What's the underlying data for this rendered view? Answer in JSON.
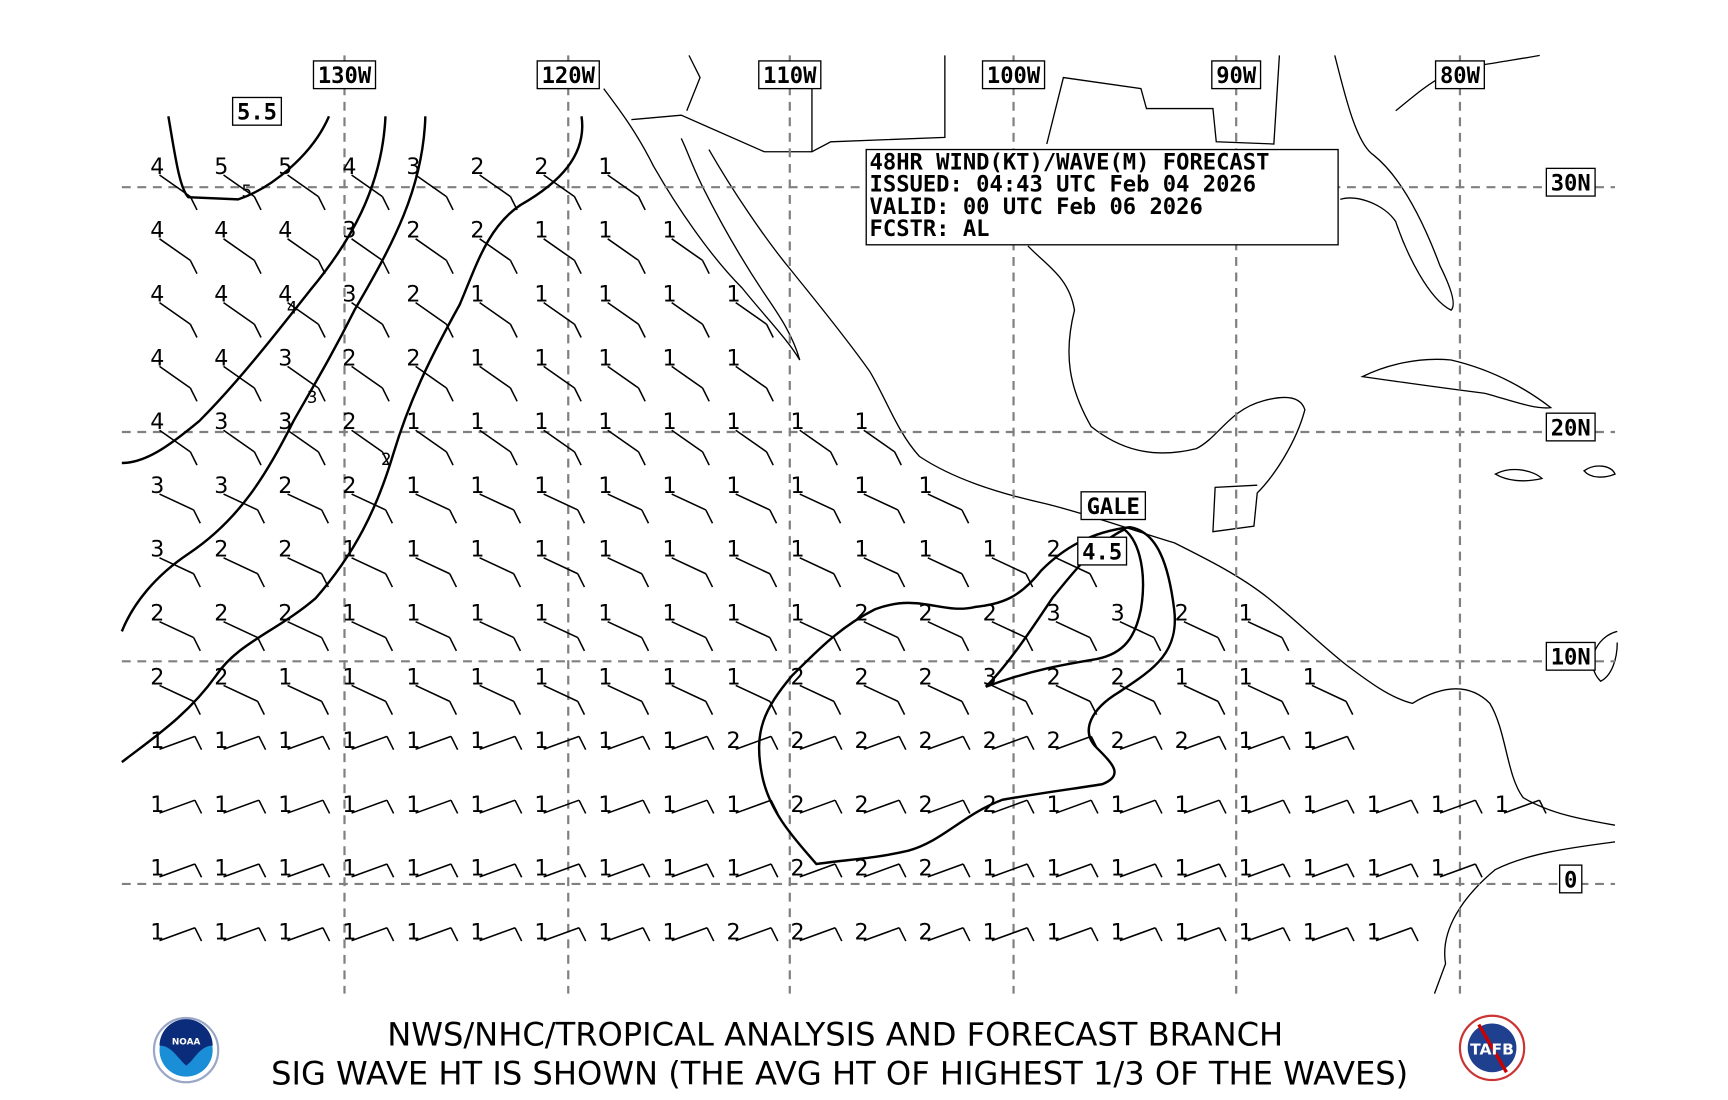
{
  "header": {
    "line1": "48HR WIND(KT)/WAVE(M) FORECAST",
    "line2": "ISSUED: 04:43 UTC Feb 04 2026",
    "line3": "VALID: 00 UTC Feb 06 2026",
    "line4": "FCSTR: AL"
  },
  "longitude_labels": [
    "130W",
    "120W",
    "110W",
    "100W",
    "90W",
    "80W"
  ],
  "latitude_labels": [
    "30N",
    "20N",
    "10N",
    "0"
  ],
  "contour_labels": {
    "max_box": "5.5",
    "c5": "5",
    "c4": "4",
    "c3": "3",
    "c2": "2",
    "gale": "GALE",
    "gale_wave": "4.5"
  },
  "wave_heights_m": [
    [
      4,
      5,
      5,
      4,
      3,
      2,
      2,
      1
    ],
    [
      4,
      4,
      4,
      3,
      2,
      2,
      1,
      1,
      1
    ],
    [
      4,
      4,
      4,
      3,
      2,
      1,
      1,
      1,
      1,
      1
    ],
    [
      4,
      4,
      3,
      2,
      2,
      1,
      1,
      1,
      1,
      1
    ],
    [
      4,
      3,
      3,
      2,
      1,
      1,
      1,
      1,
      1,
      1,
      1,
      1
    ],
    [
      3,
      3,
      2,
      2,
      1,
      1,
      1,
      1,
      1,
      1,
      1,
      1,
      1
    ],
    [
      3,
      2,
      2,
      1,
      1,
      1,
      1,
      1,
      1,
      1,
      1,
      1,
      1,
      1,
      2
    ],
    [
      2,
      2,
      2,
      1,
      1,
      1,
      1,
      1,
      1,
      1,
      1,
      2,
      2,
      2,
      3,
      3,
      2,
      1
    ],
    [
      2,
      2,
      1,
      1,
      1,
      1,
      1,
      1,
      1,
      1,
      2,
      2,
      2,
      3,
      2,
      2,
      1,
      1,
      1
    ],
    [
      1,
      1,
      1,
      1,
      1,
      1,
      1,
      1,
      1,
      2,
      2,
      2,
      2,
      2,
      2,
      2,
      2,
      1,
      1
    ],
    [
      1,
      1,
      1,
      1,
      1,
      1,
      1,
      1,
      1,
      1,
      2,
      2,
      2,
      2,
      1,
      1,
      1,
      1,
      1,
      1,
      1,
      1
    ],
    [
      1,
      1,
      1,
      1,
      1,
      1,
      1,
      1,
      1,
      1,
      2,
      2,
      2,
      1,
      1,
      1,
      1,
      1,
      1,
      1,
      1
    ],
    [
      1,
      1,
      1,
      1,
      1,
      1,
      1,
      1,
      1,
      2,
      2,
      2,
      2,
      1,
      1,
      1,
      1,
      1,
      1,
      1
    ]
  ],
  "footer": {
    "line1": "NWS/NHC/TROPICAL ANALYSIS AND FORECAST BRANCH",
    "line2": "SIG WAVE HT IS SHOWN (THE AVG HT OF HIGHEST 1/3 OF THE WAVES)"
  },
  "logos": {
    "left": "NOAA",
    "right": "TAFB"
  },
  "colors": {
    "grid": "#808080",
    "lines": "#000000",
    "noaa_blue": "#1a5fb4"
  }
}
